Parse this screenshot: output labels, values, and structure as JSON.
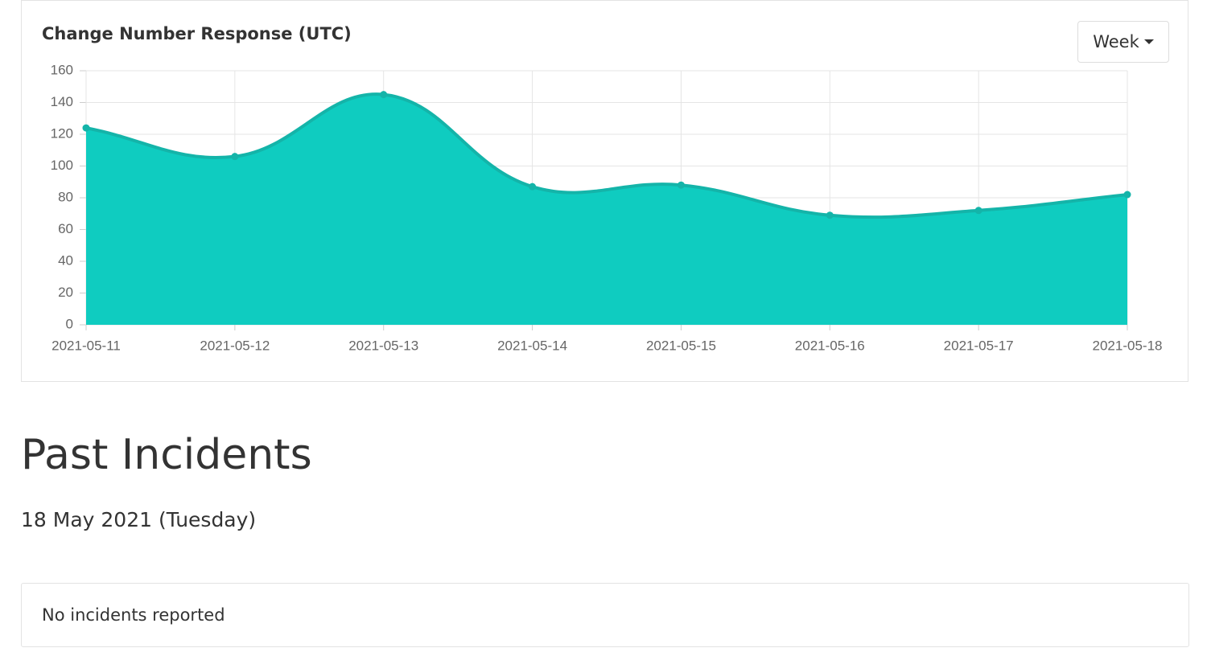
{
  "chart_data": {
    "type": "area",
    "title": "Change Number Response (UTC)",
    "categories": [
      "2021-05-11",
      "2021-05-12",
      "2021-05-13",
      "2021-05-14",
      "2021-05-15",
      "2021-05-16",
      "2021-05-17",
      "2021-05-18"
    ],
    "values": [
      124,
      106,
      145,
      87,
      88,
      69,
      72,
      82
    ],
    "color": "#0fccc0",
    "line_color": "#14b4a9",
    "ylim": [
      0,
      160
    ],
    "yticks": [
      0,
      20,
      40,
      60,
      80,
      100,
      120,
      140,
      160
    ],
    "grid": true
  },
  "range_selector": "Week",
  "incidents": {
    "title": "Past Incidents",
    "date": "18 May 2021 (Tuesday)",
    "message": "No incidents reported"
  }
}
